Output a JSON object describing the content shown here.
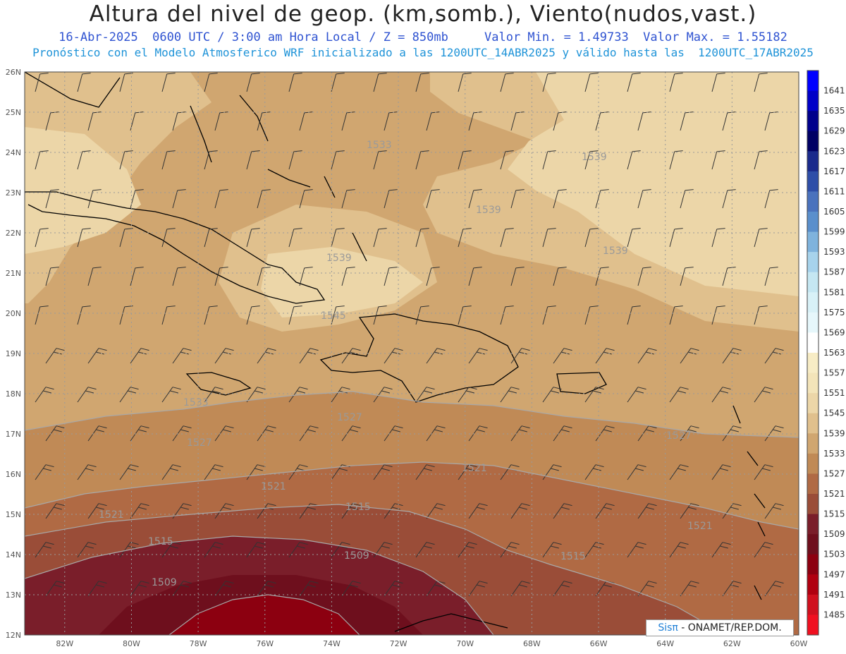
{
  "header": {
    "title": "Altura del nivel de geop. (km,somb.), Viento(nudos,vast.)",
    "subtitle_date": "16-Abr-2025  0600 UTC / 3:00 am Hora Local / Z = 850mb",
    "subtitle_range": "Valor Min. = 1.49733  Valor Max. = 1.55182",
    "subtitle_model": "Pronóstico con el Modelo Atmosferico WRF inicializado a las 1200UTC_14ABR2025 y válido hasta las  1200UTC_17ABR2025"
  },
  "credit": {
    "brand": "Sisπ",
    "text": " - ONAMET/REP.DOM."
  },
  "axes": {
    "lat_labels": [
      "26N",
      "25N",
      "24N",
      "23N",
      "22N",
      "21N",
      "20N",
      "19N",
      "18N",
      "17N",
      "16N",
      "15N",
      "14N",
      "13N",
      "12N"
    ],
    "lon_labels": [
      "82W",
      "80W",
      "78W",
      "76W",
      "74W",
      "72W",
      "70W",
      "68W",
      "66W",
      "64W",
      "62W",
      "60W"
    ]
  },
  "colorbar": {
    "labels": [
      "1641",
      "1635",
      "1629",
      "1623",
      "1617",
      "1611",
      "1605",
      "1599",
      "1593",
      "1587",
      "1581",
      "1575",
      "1569",
      "1563",
      "1557",
      "1551",
      "1545",
      "1539",
      "1533",
      "1527",
      "1521",
      "1515",
      "1509",
      "1503",
      "1497",
      "1491",
      "1485"
    ],
    "colors": [
      "#0000ff",
      "#0000c8",
      "#00008c",
      "#000064",
      "#1a2a8c",
      "#2e4ea8",
      "#4a72bd",
      "#5a8fcc",
      "#7fb3dd",
      "#a7d3ec",
      "#c5e7f2",
      "#d8f1f7",
      "#e6f7fb",
      "#ffffff",
      "#f7ecc5",
      "#f3e4b9",
      "#ecd6a8",
      "#e0c08d",
      "#d0a670",
      "#c08a56",
      "#b06a44",
      "#9a4d38",
      "#7a1e2a",
      "#6e0f1d",
      "#8c0010",
      "#b00010",
      "#d0101e",
      "#f01020"
    ]
  },
  "contour_labels": [
    {
      "text": "1533"
    },
    {
      "text": "1539"
    },
    {
      "text": "1539"
    },
    {
      "text": "1539"
    },
    {
      "text": "1539"
    },
    {
      "text": "1545"
    },
    {
      "text": "1533"
    },
    {
      "text": "1527"
    },
    {
      "text": "1527"
    },
    {
      "text": "1527"
    },
    {
      "text": "1521"
    },
    {
      "text": "1521"
    },
    {
      "text": "1521"
    },
    {
      "text": "1521"
    },
    {
      "text": "1515"
    },
    {
      "text": "1515"
    },
    {
      "text": "1515"
    },
    {
      "text": "1509"
    },
    {
      "text": "1509"
    }
  ]
}
